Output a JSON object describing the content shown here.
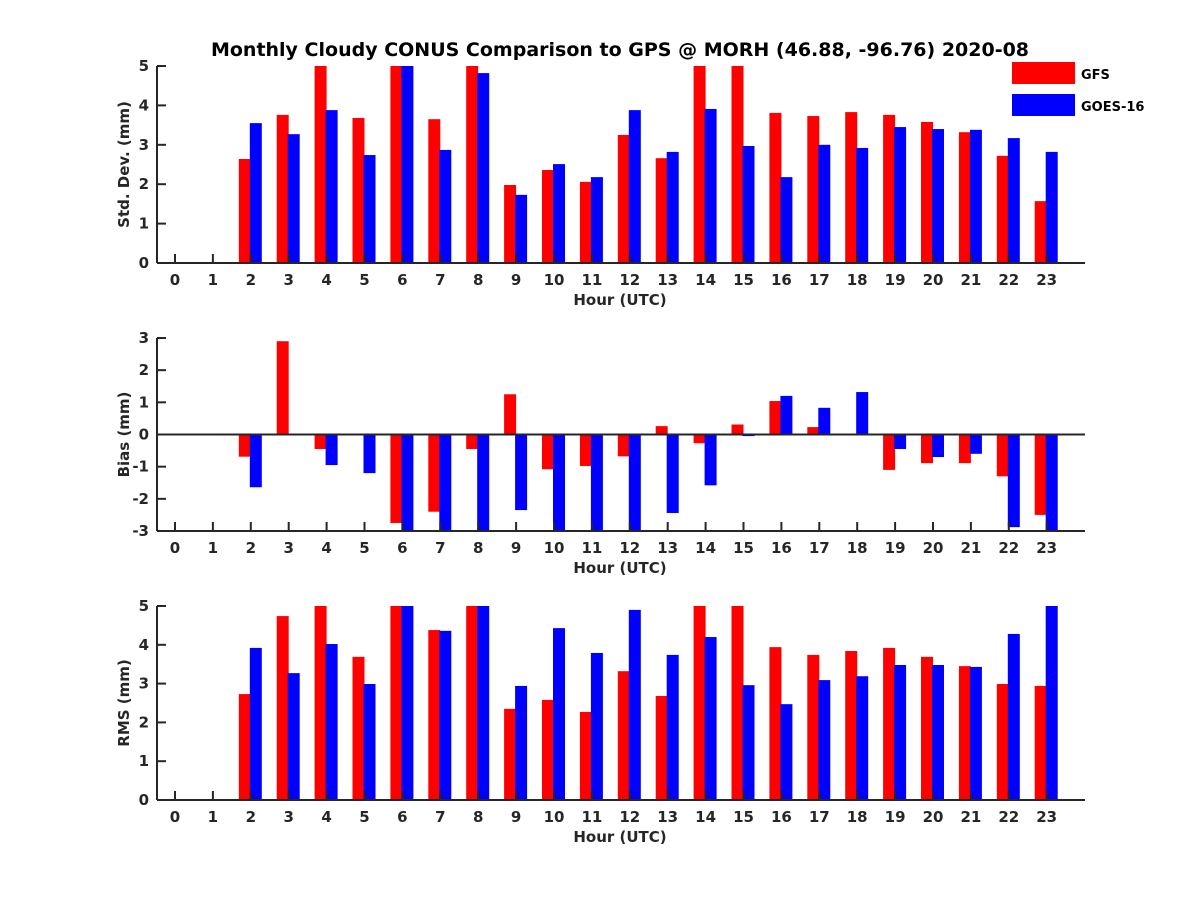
{
  "chart_data": {
    "title": "Monthly Cloudy CONUS Comparison to GPS @ MORH (46.88, -96.76) 2020-08",
    "type": "bar",
    "legend": {
      "placement": "top-right",
      "entries": [
        {
          "name": "GFS",
          "color": "#ff0000"
        },
        {
          "name": "GOES-16",
          "color": "#0000ff"
        }
      ]
    },
    "panels": [
      {
        "id": "stddev",
        "type": "bar",
        "xlabel": "Hour (UTC)",
        "ylabel": "Std. Dev. (mm)",
        "ylim": [
          0,
          5
        ],
        "yticks": [
          0,
          1,
          2,
          3,
          4,
          5
        ],
        "categories": [
          0,
          1,
          2,
          3,
          4,
          5,
          6,
          7,
          8,
          9,
          10,
          11,
          12,
          13,
          14,
          15,
          16,
          17,
          18,
          19,
          20,
          21,
          22,
          23
        ],
        "series": [
          {
            "name": "GFS",
            "color": "#ff0000",
            "values": [
              null,
              null,
              2.64,
              3.76,
              5.0,
              3.68,
              5.0,
              3.65,
              5.0,
              1.98,
              2.36,
              2.06,
              3.25,
              2.66,
              5.0,
              5.0,
              3.81,
              3.73,
              3.83,
              3.76,
              3.58,
              3.32,
              2.72,
              1.57
            ]
          },
          {
            "name": "GOES-16",
            "color": "#0000ff",
            "values": [
              null,
              null,
              3.55,
              3.27,
              3.88,
              2.74,
              5.0,
              2.87,
              4.82,
              1.73,
              2.51,
              2.18,
              3.88,
              2.82,
              3.91,
              2.97,
              2.18,
              3.0,
              2.92,
              3.45,
              3.4,
              3.38,
              3.17,
              2.82
            ]
          }
        ]
      },
      {
        "id": "bias",
        "type": "bar",
        "xlabel": "Hour (UTC)",
        "ylabel": "Bias (mm)",
        "ylim": [
          -3,
          3
        ],
        "yticks": [
          -3,
          -2,
          -1,
          0,
          1,
          2,
          3
        ],
        "categories": [
          0,
          1,
          2,
          3,
          4,
          5,
          6,
          7,
          8,
          9,
          10,
          11,
          12,
          13,
          14,
          15,
          16,
          17,
          18,
          19,
          20,
          21,
          22,
          23
        ],
        "series": [
          {
            "name": "GFS",
            "color": "#ff0000",
            "values": [
              null,
              null,
              -0.69,
              2.9,
              -0.45,
              0.03,
              -2.75,
              -2.4,
              -0.45,
              1.25,
              -1.08,
              -0.98,
              -0.68,
              0.26,
              -0.27,
              0.31,
              1.04,
              0.23,
              -0.02,
              -1.1,
              -0.89,
              -0.89,
              -1.3,
              -2.5
            ]
          },
          {
            "name": "GOES-16",
            "color": "#0000ff",
            "values": [
              null,
              null,
              -1.64,
              null,
              -0.95,
              -1.2,
              -3.0,
              -3.0,
              -3.0,
              -2.35,
              -3.0,
              -3.0,
              -2.97,
              -2.44,
              -1.58,
              -0.05,
              1.2,
              0.83,
              1.32,
              -0.45,
              -0.7,
              -0.6,
              -2.88,
              -3.0
            ]
          }
        ]
      },
      {
        "id": "rms",
        "type": "bar",
        "xlabel": "Hour (UTC)",
        "ylabel": "RMS (mm)",
        "ylim": [
          0,
          5
        ],
        "yticks": [
          0,
          1,
          2,
          3,
          4,
          5
        ],
        "categories": [
          0,
          1,
          2,
          3,
          4,
          5,
          6,
          7,
          8,
          9,
          10,
          11,
          12,
          13,
          14,
          15,
          16,
          17,
          18,
          19,
          20,
          21,
          22,
          23
        ],
        "series": [
          {
            "name": "GFS",
            "color": "#ff0000",
            "values": [
              null,
              null,
              2.73,
              4.74,
              5.0,
              3.69,
              5.0,
              4.38,
              5.0,
              2.35,
              2.58,
              2.27,
              3.32,
              2.68,
              5.0,
              5.0,
              3.94,
              3.74,
              3.84,
              3.92,
              3.69,
              3.45,
              2.99,
              2.94
            ]
          },
          {
            "name": "GOES-16",
            "color": "#0000ff",
            "values": [
              null,
              null,
              3.92,
              3.27,
              4.02,
              2.99,
              5.0,
              4.36,
              5.0,
              2.94,
              4.43,
              3.79,
              4.9,
              3.74,
              4.2,
              2.96,
              2.47,
              3.09,
              3.19,
              3.48,
              3.48,
              3.43,
              4.28,
              5.0
            ]
          }
        ]
      }
    ]
  }
}
